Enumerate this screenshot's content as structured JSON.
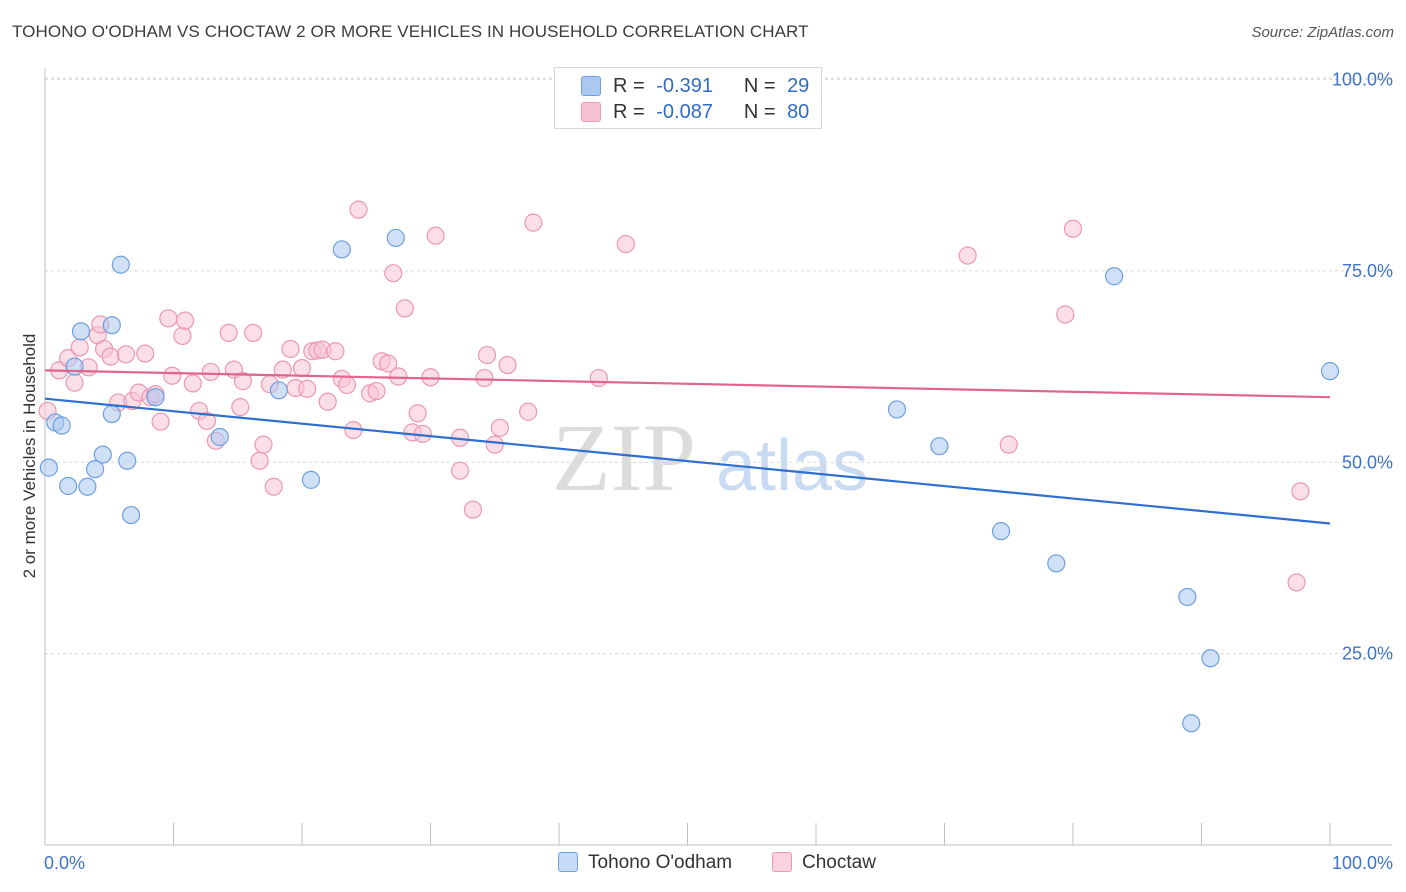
{
  "header": {
    "title": "TOHONO O'ODHAM VS CHOCTAW 2 OR MORE VEHICLES IN HOUSEHOLD CORRELATION CHART",
    "source": "Source: ZipAtlas.com"
  },
  "legend_top": [
    {
      "r_label": "R =",
      "r_value": "-0.391",
      "n_label": "N =",
      "n_value": "29"
    },
    {
      "r_label": "R =",
      "r_value": "-0.087",
      "n_label": "N =",
      "n_value": "80"
    }
  ],
  "legend_bottom": [
    {
      "label": "Tohono O'odham"
    },
    {
      "label": "Choctaw"
    }
  ],
  "colors": {
    "tohono_fill": "#aac8f0",
    "tohono_stroke": "#6d9fe0",
    "tohono_line": "#2f6fd0",
    "choctaw_fill": "#f7c2d2",
    "choctaw_stroke": "#ec97b4",
    "choctaw_line": "#e0648c",
    "axis_label": "#3d74c6",
    "grid": "#d9d9d9"
  },
  "watermark": {
    "zip": "ZIP",
    "atlas": "atlas"
  },
  "chart_data": {
    "type": "scatter",
    "title": "TOHONO O'ODHAM VS CHOCTAW 2 OR MORE VEHICLES IN HOUSEHOLD CORRELATION CHART",
    "xlabel": "",
    "ylabel": "2 or more Vehicles in Household",
    "xlim": [
      0,
      100
    ],
    "ylim": [
      0,
      105
    ],
    "x_tick_labels": [
      "0.0%",
      "100.0%"
    ],
    "y_ticks": [
      {
        "value": 25,
        "label": "25.0%"
      },
      {
        "value": 50,
        "label": "50.0%"
      },
      {
        "value": 75,
        "label": "75.0%"
      },
      {
        "value": 100,
        "label": "100.0%"
      }
    ],
    "grid": "horizontal dashed",
    "series": [
      {
        "name": "Tohono O'odham",
        "trend": [
          [
            0,
            58.3
          ],
          [
            100,
            42.0
          ]
        ],
        "points": [
          [
            0.3,
            49.3
          ],
          [
            0.8,
            55.2
          ],
          [
            1.3,
            54.8
          ],
          [
            1.8,
            46.9
          ],
          [
            2.3,
            62.5
          ],
          [
            2.8,
            67.1
          ],
          [
            3.3,
            46.8
          ],
          [
            3.9,
            49.1
          ],
          [
            4.5,
            51.0
          ],
          [
            5.2,
            56.3
          ],
          [
            5.2,
            67.9
          ],
          [
            5.9,
            75.8
          ],
          [
            6.4,
            50.2
          ],
          [
            6.7,
            43.1
          ],
          [
            8.6,
            58.5
          ],
          [
            13.6,
            53.3
          ],
          [
            18.2,
            59.4
          ],
          [
            20.7,
            47.7
          ],
          [
            23.1,
            77.8
          ],
          [
            27.3,
            79.3
          ],
          [
            66.3,
            56.9
          ],
          [
            69.6,
            52.1
          ],
          [
            74.4,
            41.0
          ],
          [
            78.7,
            36.8
          ],
          [
            83.2,
            74.3
          ],
          [
            88.9,
            32.4
          ],
          [
            90.7,
            24.4
          ],
          [
            89.2,
            15.9
          ],
          [
            100.0,
            61.9
          ]
        ]
      },
      {
        "name": "Choctaw",
        "trend": [
          [
            0,
            62.0
          ],
          [
            100,
            58.5
          ]
        ],
        "points": [
          [
            0.2,
            56.7
          ],
          [
            1.1,
            62.0
          ],
          [
            1.8,
            63.6
          ],
          [
            2.3,
            60.4
          ],
          [
            2.7,
            65.0
          ],
          [
            3.4,
            62.4
          ],
          [
            4.1,
            66.6
          ],
          [
            4.3,
            68.0
          ],
          [
            4.6,
            64.8
          ],
          [
            5.1,
            63.8
          ],
          [
            5.7,
            57.8
          ],
          [
            6.3,
            64.1
          ],
          [
            6.8,
            58.0
          ],
          [
            7.3,
            59.1
          ],
          [
            7.8,
            64.2
          ],
          [
            8.2,
            58.5
          ],
          [
            8.6,
            58.9
          ],
          [
            9.0,
            55.3
          ],
          [
            9.6,
            68.8
          ],
          [
            9.9,
            61.3
          ],
          [
            10.7,
            66.5
          ],
          [
            10.9,
            68.5
          ],
          [
            11.5,
            60.3
          ],
          [
            12.0,
            56.7
          ],
          [
            12.6,
            55.4
          ],
          [
            12.9,
            61.8
          ],
          [
            13.3,
            52.8
          ],
          [
            14.3,
            66.9
          ],
          [
            14.7,
            62.1
          ],
          [
            15.2,
            57.2
          ],
          [
            15.4,
            60.6
          ],
          [
            16.2,
            66.9
          ],
          [
            16.7,
            50.2
          ],
          [
            17.0,
            52.3
          ],
          [
            17.5,
            60.2
          ],
          [
            17.8,
            46.8
          ],
          [
            18.5,
            62.1
          ],
          [
            19.1,
            64.8
          ],
          [
            19.5,
            59.7
          ],
          [
            20.0,
            62.3
          ],
          [
            20.4,
            59.6
          ],
          [
            20.8,
            64.5
          ],
          [
            21.2,
            64.6
          ],
          [
            21.6,
            64.7
          ],
          [
            22.0,
            57.9
          ],
          [
            22.6,
            64.5
          ],
          [
            23.1,
            60.9
          ],
          [
            23.5,
            60.1
          ],
          [
            24.0,
            54.2
          ],
          [
            24.4,
            83.0
          ],
          [
            25.3,
            59.0
          ],
          [
            25.8,
            59.3
          ],
          [
            26.2,
            63.2
          ],
          [
            26.7,
            62.9
          ],
          [
            27.1,
            74.7
          ],
          [
            27.5,
            61.2
          ],
          [
            28.0,
            70.1
          ],
          [
            28.6,
            53.9
          ],
          [
            29.0,
            56.4
          ],
          [
            29.4,
            53.7
          ],
          [
            30.0,
            61.1
          ],
          [
            30.4,
            79.6
          ],
          [
            32.3,
            53.2
          ],
          [
            32.3,
            48.9
          ],
          [
            33.3,
            43.8
          ],
          [
            34.2,
            61.0
          ],
          [
            34.4,
            64.0
          ],
          [
            35.0,
            52.3
          ],
          [
            35.4,
            54.5
          ],
          [
            36.0,
            62.7
          ],
          [
            37.6,
            56.6
          ],
          [
            38.0,
            81.3
          ],
          [
            43.1,
            61.0
          ],
          [
            45.2,
            78.5
          ],
          [
            71.8,
            77.0
          ],
          [
            75.0,
            52.3
          ],
          [
            79.4,
            69.3
          ],
          [
            80.0,
            80.5
          ],
          [
            97.7,
            46.2
          ],
          [
            97.4,
            34.3
          ]
        ]
      }
    ]
  }
}
